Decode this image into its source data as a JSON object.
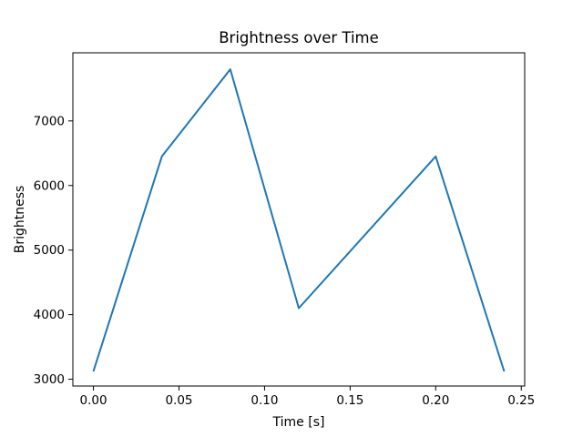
{
  "figure": {
    "background_color": "#ffffff",
    "text_color": "#000000",
    "spine_color": "#000000"
  },
  "chart_data": {
    "type": "line",
    "title": "Brightness over Time",
    "xlabel": "Time [s]",
    "ylabel": "Brightness",
    "line_color": "#1f77b4",
    "grid": false,
    "legend": "none",
    "x": [
      0.0,
      0.04,
      0.08,
      0.12,
      0.2,
      0.24
    ],
    "y": [
      3120,
      6450,
      7800,
      4100,
      6450,
      3120
    ],
    "xlim": [
      -0.012,
      0.252
    ],
    "ylim": [
      2895,
      8055
    ],
    "xtick_values": [
      0.0,
      0.05,
      0.1,
      0.15,
      0.2,
      0.25
    ],
    "xtick_labels": [
      "0.00",
      "0.05",
      "0.10",
      "0.15",
      "0.20",
      "0.25"
    ],
    "ytick_values": [
      3000,
      4000,
      5000,
      6000,
      7000
    ],
    "ytick_labels": [
      "3000",
      "4000",
      "5000",
      "6000",
      "7000"
    ]
  }
}
